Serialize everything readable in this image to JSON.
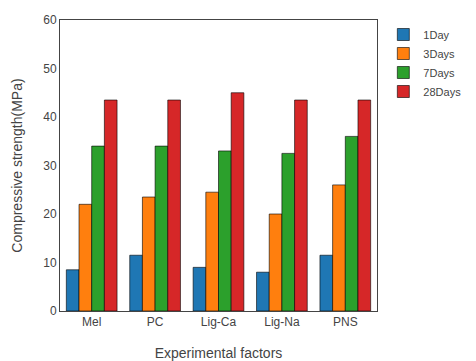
{
  "chart_data": {
    "type": "bar",
    "categories": [
      "Mel",
      "PC",
      "Lig-Ca",
      "Lig-Na",
      "PNS"
    ],
    "series": [
      {
        "name": "1Day",
        "values": [
          8.5,
          11.5,
          9.0,
          8.0,
          11.5
        ]
      },
      {
        "name": "3Days",
        "values": [
          22.0,
          23.5,
          24.5,
          20.0,
          26.0
        ]
      },
      {
        "name": "7Days",
        "values": [
          34.0,
          34.0,
          33.0,
          32.5,
          36.0
        ]
      },
      {
        "name": "28Days",
        "values": [
          43.5,
          43.5,
          45.0,
          43.5,
          43.5
        ]
      }
    ],
    "xlabel": "Experimental factors",
    "ylabel": "Compressive strength(MPa)",
    "ylim": [
      0,
      60
    ],
    "yticks": [
      0,
      10,
      20,
      30,
      40,
      50,
      60
    ],
    "grid": false,
    "legend": "upper right"
  }
}
